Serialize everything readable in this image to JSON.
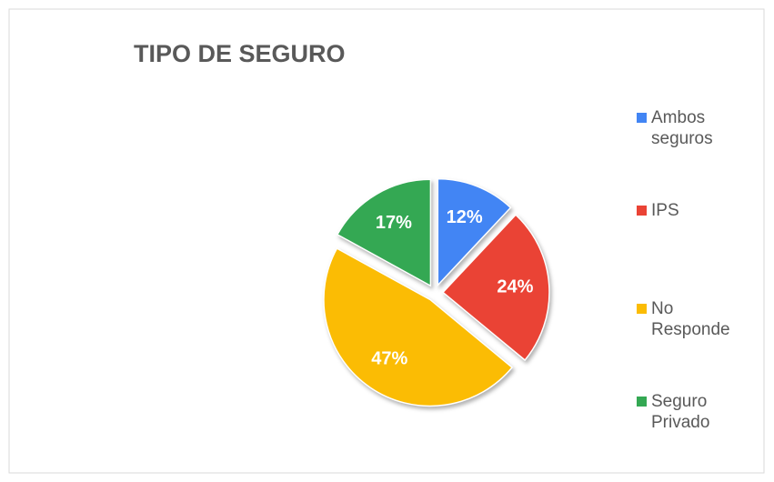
{
  "chart_data": {
    "type": "pie",
    "title": "TIPO DE SEGURO",
    "categories": [
      "Ambos seguros",
      "IPS",
      "No Responde",
      "Seguro Privado"
    ],
    "values": [
      12,
      24,
      47,
      17
    ],
    "value_labels": [
      "12%",
      "24%",
      "47%",
      "17%"
    ],
    "colors": [
      "#4285f4",
      "#ea4335",
      "#fbbc04",
      "#34a853"
    ],
    "legend": "right"
  }
}
